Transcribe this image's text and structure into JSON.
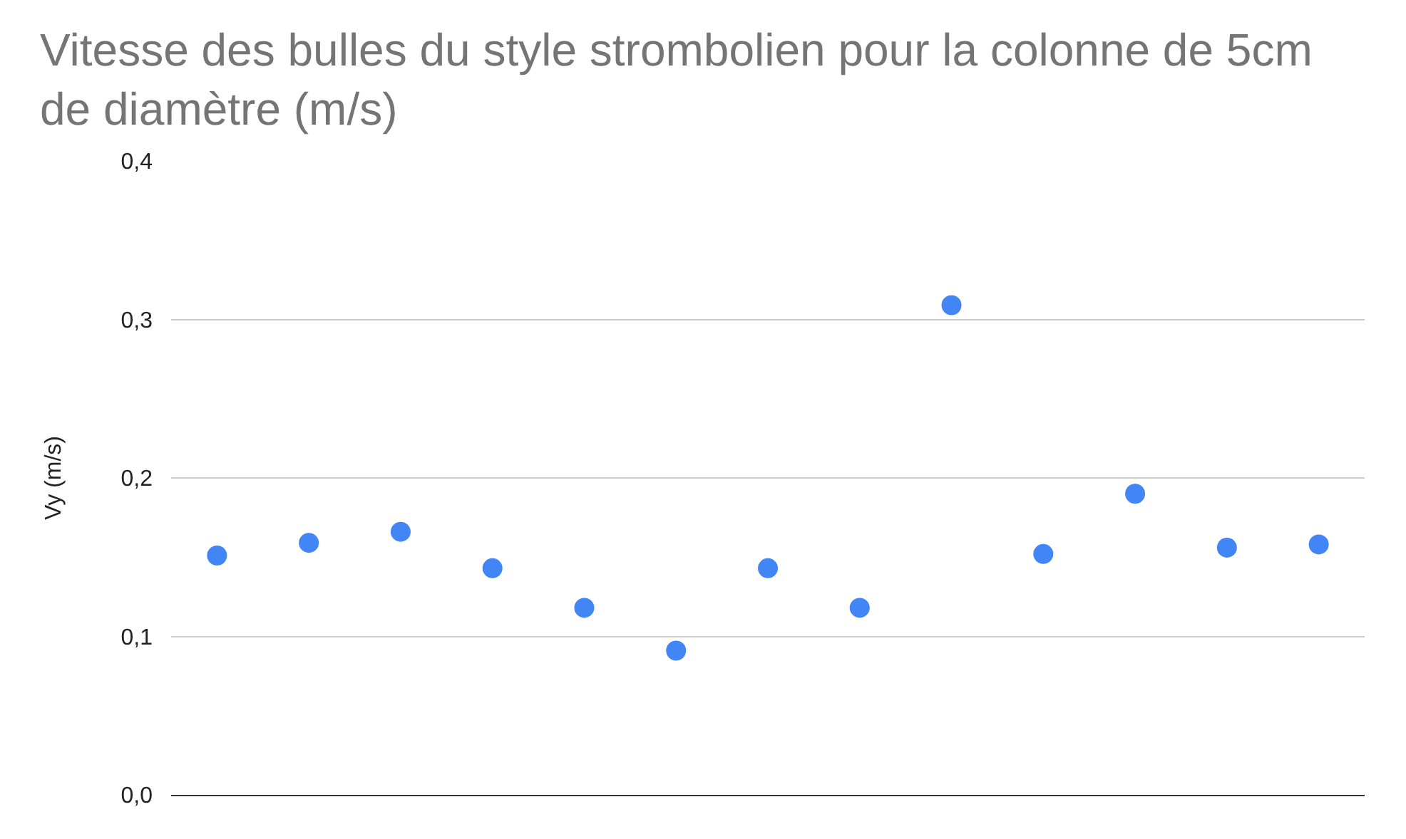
{
  "chart_data": {
    "type": "scatter",
    "title": "Vitesse des bulles du style strombolien pour la colonne de 5cm de diamètre (m/s)",
    "ylabel": "Vy (m/s)",
    "categories": [
      null,
      null,
      null,
      null,
      null,
      null,
      null,
      null,
      null,
      null,
      null,
      null,
      null
    ],
    "series": [
      {
        "color": "#4285f4",
        "values": [
          0.151,
          0.159,
          0.166,
          0.143,
          0.118,
          0.091,
          0.143,
          0.118,
          0.309,
          0.152,
          0.19,
          0.156,
          0.158
        ]
      }
    ],
    "ylim": [
      0,
      0.4
    ],
    "yticks": [
      {
        "value": 0,
        "label": "0,0"
      },
      {
        "value": 0.1,
        "label": "0,1"
      },
      {
        "value": 0.2,
        "label": "0,2"
      },
      {
        "value": 0.3,
        "label": "0,3"
      },
      {
        "value": 0.4,
        "label": "0,4"
      }
    ],
    "grid": "y",
    "marker": "circle",
    "tick_labels": "y"
  }
}
